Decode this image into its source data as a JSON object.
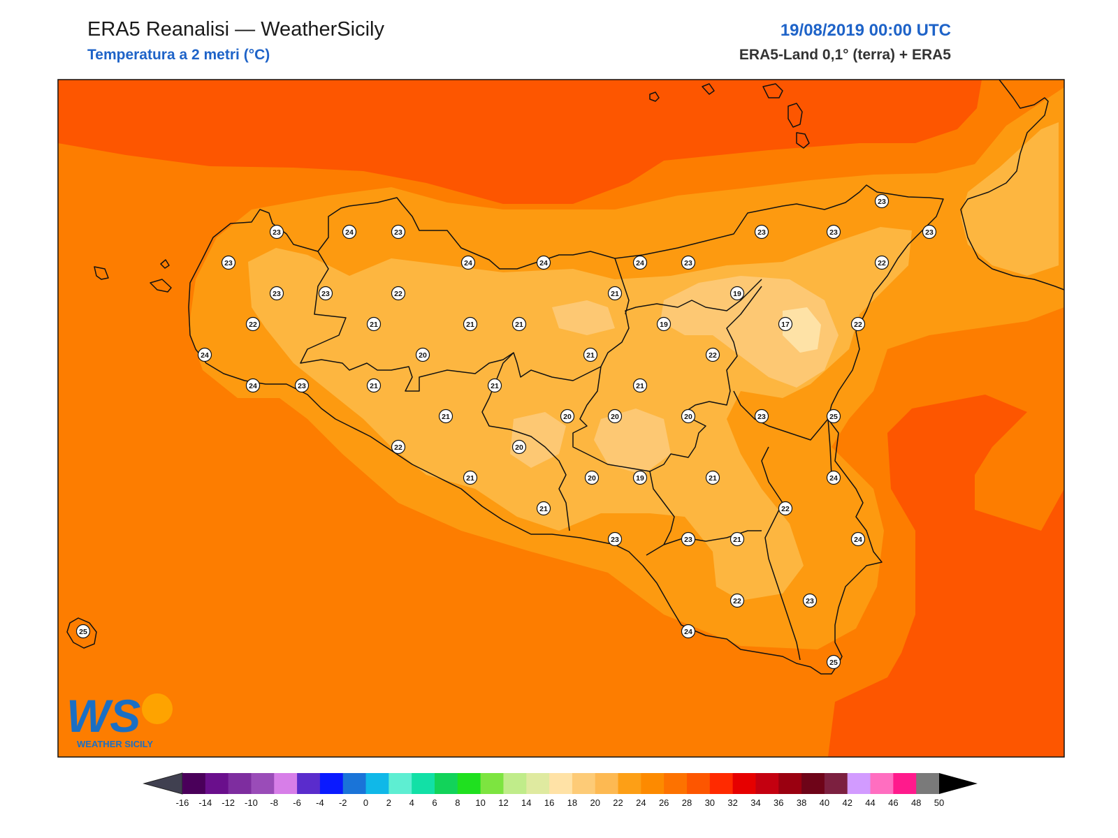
{
  "header": {
    "title": "ERA5 Reanalisi — WeatherSicily",
    "subtitle": "Temperatura a 2 metri (°C)",
    "datetime": "19/08/2019 00:00 UTC",
    "source": "ERA5-Land 0,1° (terra) + ERA5"
  },
  "logo": {
    "text": "WEATHER SICILY",
    "letters": "WS"
  },
  "colorbar": {
    "labels": [
      "-16",
      "-14",
      "-12",
      "-10",
      "-8",
      "-6",
      "-4",
      "-2",
      "0",
      "2",
      "4",
      "6",
      "8",
      "10",
      "12",
      "14",
      "16",
      "18",
      "20",
      "22",
      "24",
      "26",
      "28",
      "30",
      "32",
      "34",
      "36",
      "38",
      "40",
      "42",
      "44",
      "46",
      "48",
      "50"
    ],
    "colors": [
      "#4a005a",
      "#6a0f8c",
      "#7e2d9f",
      "#9a4cb8",
      "#d77ee8",
      "#5a2ccc",
      "#0a1aff",
      "#1a74d8",
      "#10b8e8",
      "#5eeed2",
      "#12e0a6",
      "#12d35a",
      "#1fe01f",
      "#7de440",
      "#c0ec8a",
      "#dfeaa0",
      "#ffe2a6",
      "#fdcb77",
      "#fdb952",
      "#fd9f16",
      "#fd8a00",
      "#fd7200",
      "#fd5600",
      "#ff2a00",
      "#e60000",
      "#c40010",
      "#9a0010",
      "#6e0418",
      "#7c2040",
      "#d29bff",
      "#ff6ec0",
      "#ff1a8c",
      "#7a7a7a",
      "#3c3c3c"
    ],
    "low_color": "#404050",
    "high_color": "#000000"
  },
  "field_colors": {
    "sea_warm": "#fd5600",
    "base": "#fd7d00",
    "band_24": "#fd9a10",
    "band_22": "#fdb640",
    "band_20": "#fdc873",
    "band_18": "#fee2a6"
  },
  "station_values": [
    {
      "id": "s1",
      "v": "23"
    },
    {
      "id": "s2",
      "v": "24"
    },
    {
      "id": "s3",
      "v": "23"
    },
    {
      "id": "s4",
      "v": "23"
    },
    {
      "id": "s5",
      "v": "23"
    },
    {
      "id": "s6",
      "v": "23"
    },
    {
      "id": "s7",
      "v": "24"
    },
    {
      "id": "s8",
      "v": "24"
    },
    {
      "id": "s9",
      "v": "24"
    },
    {
      "id": "s10",
      "v": "23"
    },
    {
      "id": "s11",
      "v": "23"
    },
    {
      "id": "s12",
      "v": "23"
    },
    {
      "id": "s13",
      "v": "23"
    },
    {
      "id": "s14",
      "v": "22"
    },
    {
      "id": "s15",
      "v": "23"
    },
    {
      "id": "s16",
      "v": "22"
    },
    {
      "id": "s17",
      "v": "21"
    },
    {
      "id": "s18",
      "v": "19"
    },
    {
      "id": "s19",
      "v": "22"
    },
    {
      "id": "s20",
      "v": "21"
    },
    {
      "id": "s21",
      "v": "21"
    },
    {
      "id": "s22",
      "v": "21"
    },
    {
      "id": "s23",
      "v": "19"
    },
    {
      "id": "s24",
      "v": "17"
    },
    {
      "id": "s25",
      "v": "22"
    },
    {
      "id": "s26",
      "v": "24"
    },
    {
      "id": "s27",
      "v": "20"
    },
    {
      "id": "s28",
      "v": "21"
    },
    {
      "id": "s29",
      "v": "22"
    },
    {
      "id": "s30",
      "v": "24"
    },
    {
      "id": "s31",
      "v": "23"
    },
    {
      "id": "s32",
      "v": "21"
    },
    {
      "id": "s33",
      "v": "21"
    },
    {
      "id": "s34",
      "v": "21"
    },
    {
      "id": "s35",
      "v": "21"
    },
    {
      "id": "s36",
      "v": "20"
    },
    {
      "id": "s37",
      "v": "20"
    },
    {
      "id": "s38",
      "v": "20"
    },
    {
      "id": "s39",
      "v": "23"
    },
    {
      "id": "s40",
      "v": "25"
    },
    {
      "id": "s41",
      "v": "22"
    },
    {
      "id": "s42",
      "v": "20"
    },
    {
      "id": "s43",
      "v": "21"
    },
    {
      "id": "s44",
      "v": "20"
    },
    {
      "id": "s45",
      "v": "19"
    },
    {
      "id": "s46",
      "v": "21"
    },
    {
      "id": "s47",
      "v": "24"
    },
    {
      "id": "s48",
      "v": "21"
    },
    {
      "id": "s49",
      "v": "22"
    },
    {
      "id": "s50",
      "v": "23"
    },
    {
      "id": "s51",
      "v": "23"
    },
    {
      "id": "s52",
      "v": "21"
    },
    {
      "id": "s53",
      "v": "24"
    },
    {
      "id": "s54",
      "v": "22"
    },
    {
      "id": "s55",
      "v": "23"
    },
    {
      "id": "s56",
      "v": "24"
    },
    {
      "id": "s57",
      "v": "25"
    },
    {
      "id": "s58",
      "v": "25"
    }
  ]
}
